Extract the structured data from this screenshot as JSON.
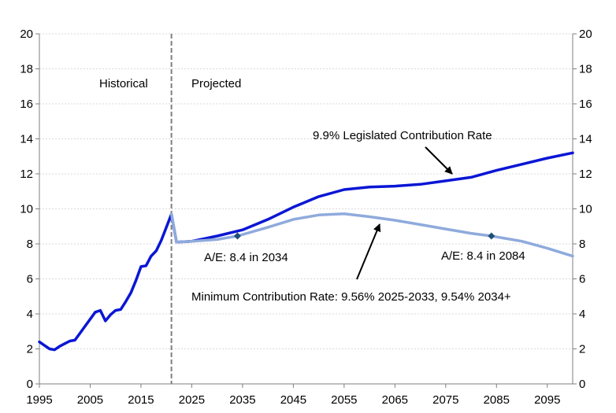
{
  "chart_data": {
    "type": "line",
    "title": "",
    "xlabel": "",
    "ylabel": "",
    "xlim": [
      1995,
      2100
    ],
    "ylim": [
      0,
      20
    ],
    "grid": true,
    "xticks": [
      1995,
      2005,
      2015,
      2025,
      2035,
      2045,
      2055,
      2065,
      2075,
      2085,
      2095
    ],
    "yticks": [
      0,
      2,
      4,
      6,
      8,
      10,
      12,
      14,
      16,
      18,
      20
    ],
    "y_axis_both_sides": true,
    "divider_year": 2021,
    "series": [
      {
        "name": "9.9% Legislated Contribution Rate",
        "color": "#0a16d4",
        "x": [
          1995,
          1996,
          1997,
          1998,
          1999,
          2000,
          2001,
          2002,
          2003,
          2004,
          2005,
          2006,
          2007,
          2008,
          2009,
          2010,
          2011,
          2012,
          2013,
          2014,
          2015,
          2016,
          2017,
          2018,
          2019,
          2020,
          2021,
          2022,
          2025,
          2030,
          2035,
          2040,
          2045,
          2050,
          2055,
          2060,
          2065,
          2070,
          2075,
          2080,
          2085,
          2090,
          2095,
          2100
        ],
        "values": [
          2.4,
          2.2,
          2.0,
          1.95,
          2.15,
          2.3,
          2.45,
          2.5,
          2.9,
          3.3,
          3.7,
          4.1,
          4.2,
          3.6,
          3.95,
          4.2,
          4.25,
          4.7,
          5.2,
          5.9,
          6.7,
          6.75,
          7.3,
          7.6,
          8.2,
          8.95,
          9.7,
          8.1,
          8.15,
          8.45,
          8.8,
          9.4,
          10.1,
          10.7,
          11.1,
          11.25,
          11.3,
          11.4,
          11.6,
          11.8,
          12.2,
          12.55,
          12.9,
          13.2
        ]
      },
      {
        "name": "Minimum Contribution Rate: 9.56% 2025-2033, 9.54% 2034+",
        "color": "#8faadc",
        "x": [
          2021,
          2022,
          2025,
          2030,
          2034,
          2040,
          2045,
          2050,
          2055,
          2060,
          2065,
          2070,
          2075,
          2080,
          2084,
          2090,
          2095,
          2100
        ],
        "values": [
          9.7,
          8.1,
          8.15,
          8.25,
          8.45,
          8.95,
          9.4,
          9.65,
          9.72,
          9.55,
          9.35,
          9.1,
          8.85,
          8.6,
          8.45,
          8.15,
          7.75,
          7.3
        ]
      }
    ],
    "markers": [
      {
        "x": 2034,
        "y": 8.45,
        "label": "A/E: 8.4 in 2034"
      },
      {
        "x": 2084,
        "y": 8.45,
        "label": "A/E: 8.4 in 2084"
      }
    ],
    "annotations": {
      "historical": "Historical",
      "projected": "Projected",
      "legislated_label": "9.9% Legislated Contribution Rate",
      "minimum_label": "Minimum Contribution Rate: 9.56% 2025-2033, 9.54% 2034+",
      "ae_2034": "A/E: 8.4 in 2034",
      "ae_2084": "A/E: 8.4 in 2084"
    }
  }
}
